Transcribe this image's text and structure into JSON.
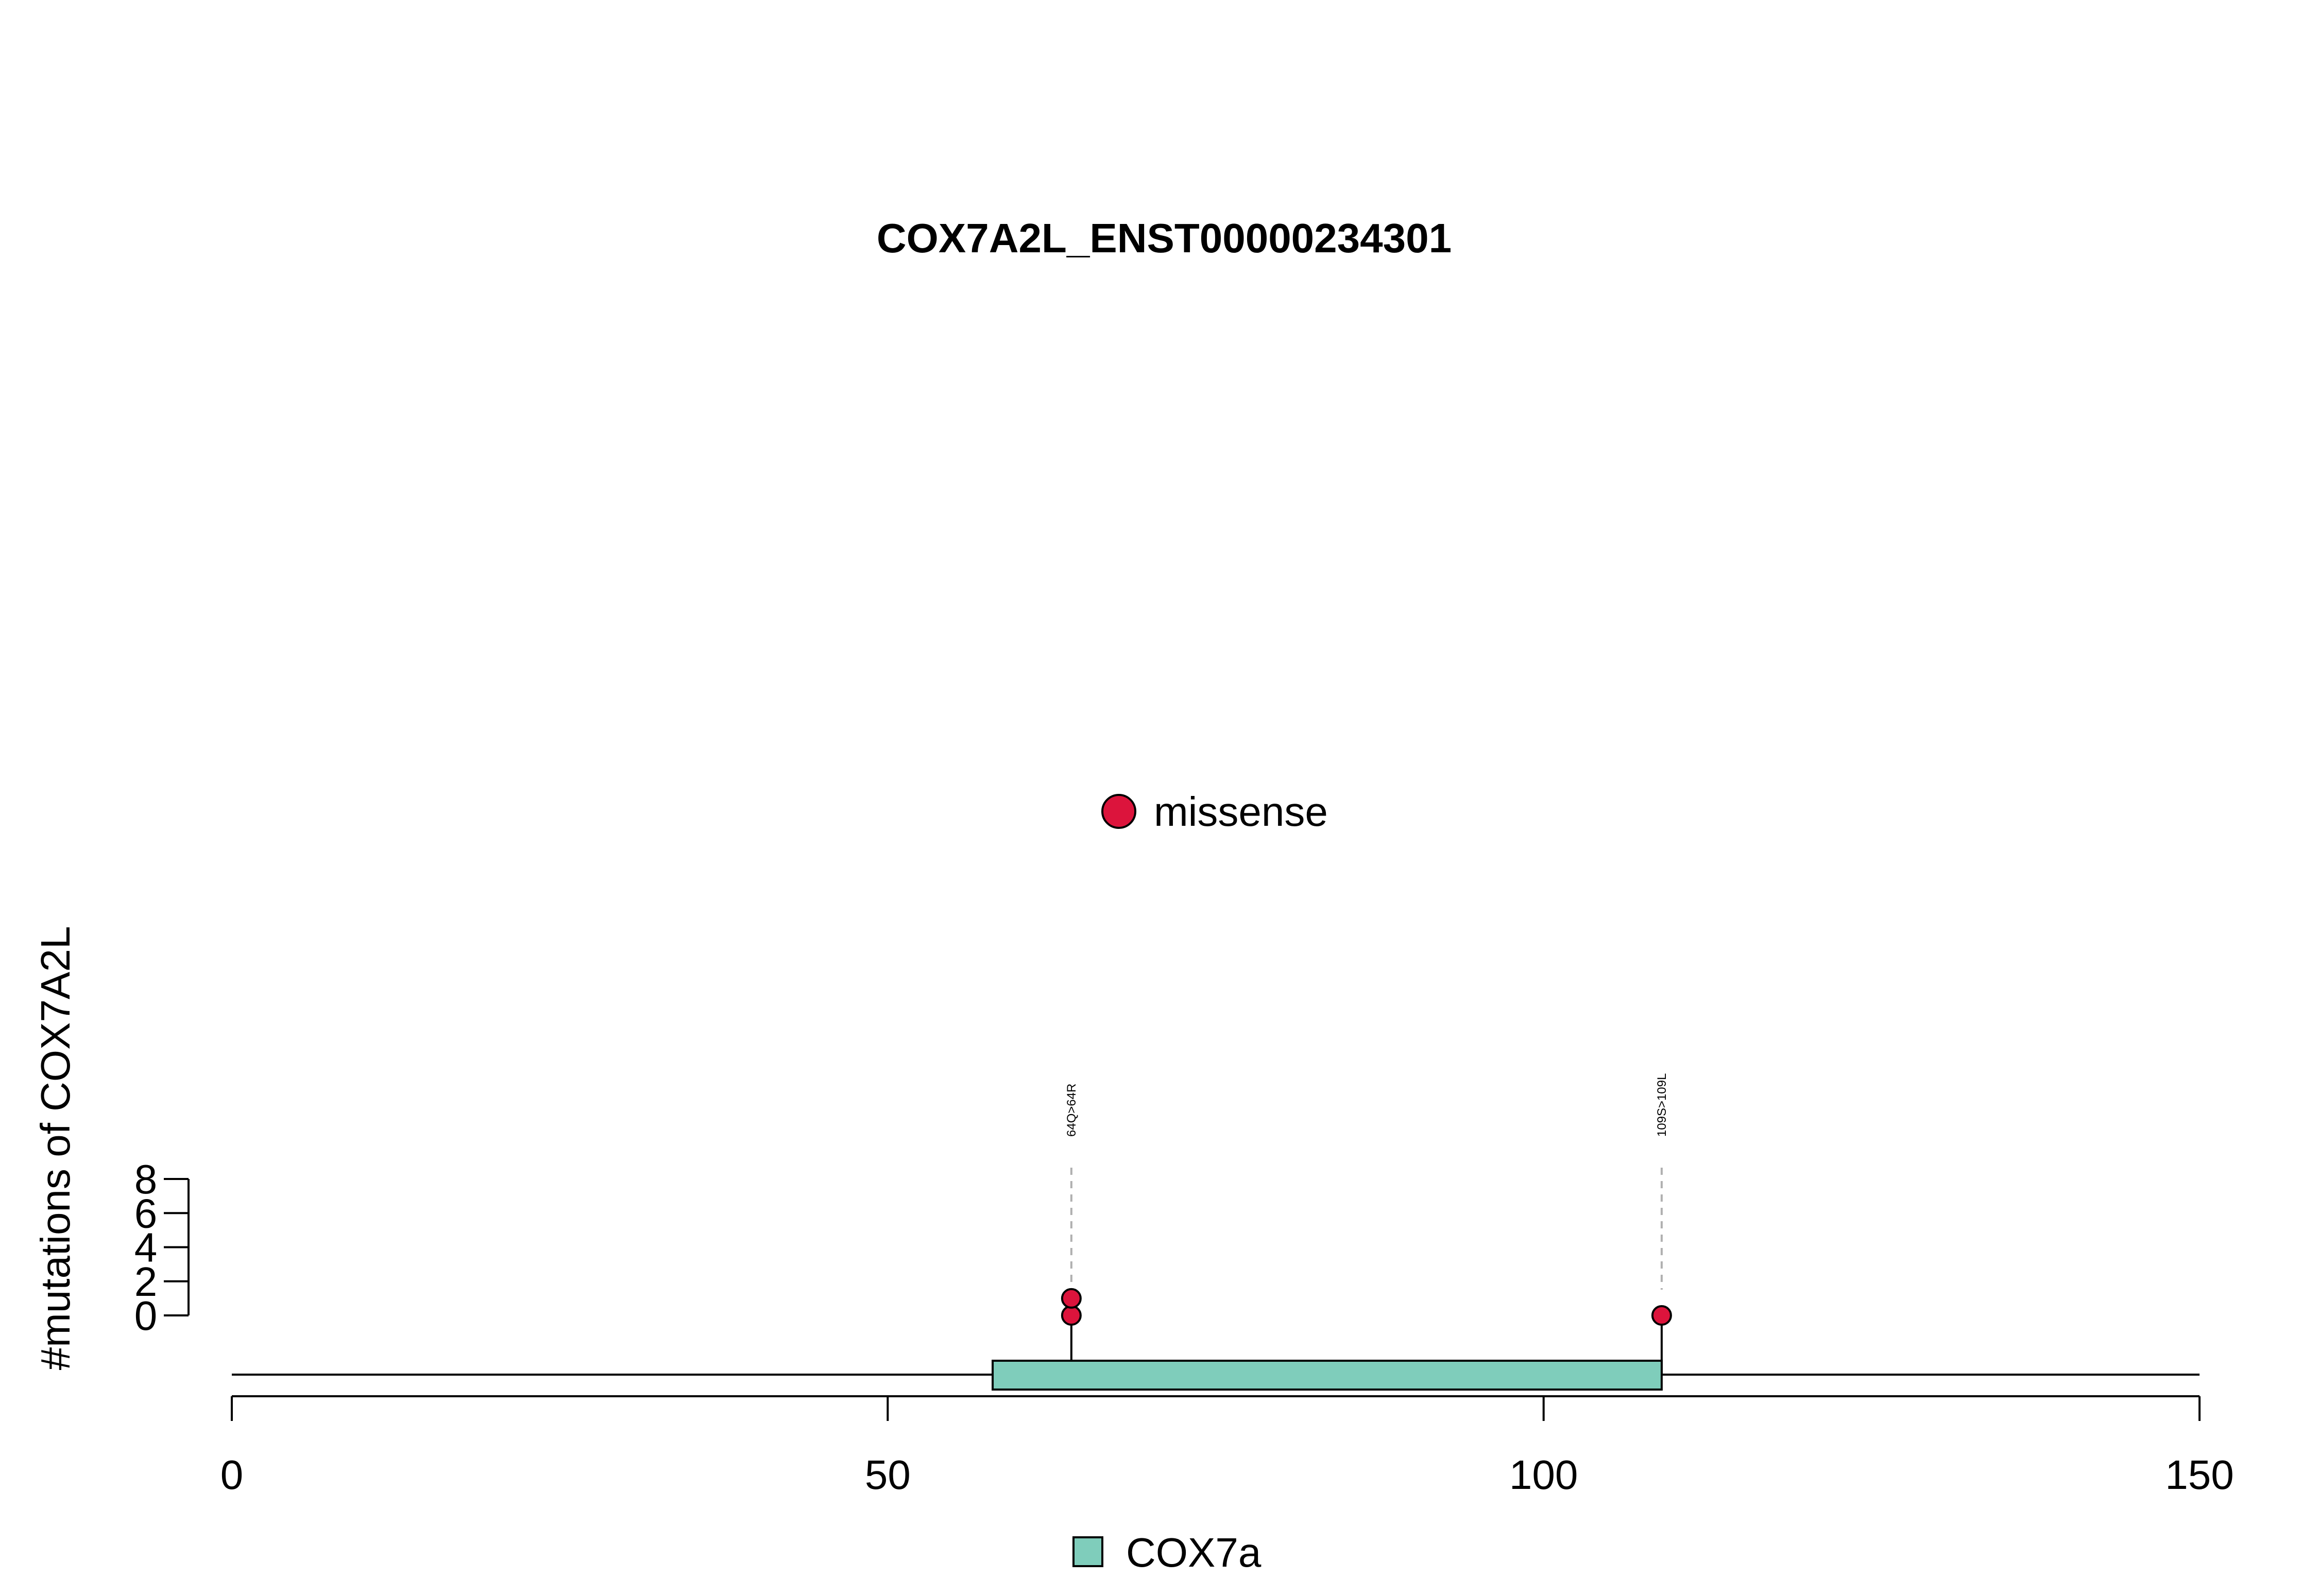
{
  "chart_data": {
    "type": "lollipop",
    "title": "COX7A2L_ENST00000234301",
    "ylabel": "#mutations of COX7A2L",
    "xlabel": "",
    "xlim": [
      0,
      150
    ],
    "x_ticks": [
      0,
      50,
      100,
      150
    ],
    "y_ticks": [
      0,
      2,
      4,
      6,
      8
    ],
    "ylim": [
      0,
      8
    ],
    "protein_length": 150,
    "domains": [
      {
        "name": "COX7a",
        "start": 58,
        "end": 109,
        "color": "#7fcdbb"
      }
    ],
    "mutations": [
      {
        "position": 64,
        "label": "64Q>64R",
        "count": 2,
        "type": "missense"
      },
      {
        "position": 109,
        "label": "109S>109L",
        "count": 1,
        "type": "missense"
      }
    ],
    "mutation_legend": [
      {
        "name": "missense",
        "color": "#dc143c"
      }
    ],
    "domain_legend": [
      {
        "name": "COX7a",
        "color": "#7fcdbb"
      }
    ]
  }
}
